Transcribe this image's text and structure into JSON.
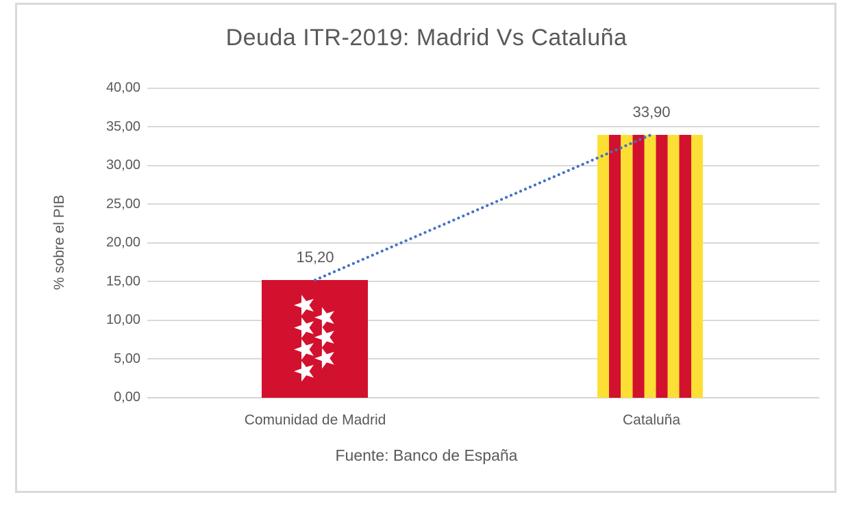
{
  "chart_data": {
    "type": "bar",
    "title": "Deuda ITR-2019: Madrid Vs Cataluña",
    "categories": [
      "Comunidad de Madrid",
      "Cataluña"
    ],
    "values": [
      15.2,
      33.9
    ],
    "value_labels": [
      "15,20",
      "33,90"
    ],
    "ylabel": "% sobre el PIB",
    "footer": "Fuente: Banco de España",
    "ylim": [
      0,
      40
    ],
    "ytick_step": 5,
    "ytick_labels": [
      "40,00",
      "35,00",
      "30,00",
      "25,00",
      "20,00",
      "15,00",
      "10,00",
      "5,00",
      "0,00"
    ],
    "grid": true,
    "legend": "none",
    "bar_styles": [
      {
        "category": "Comunidad de Madrid",
        "style": "madrid-flag",
        "fill": "#D2112E",
        "star_color": "#FFFFFF",
        "star_count": 7
      },
      {
        "category": "Cataluña",
        "style": "senyera-vertical-stripes",
        "yellow": "#FBDF35",
        "red": "#D2112E",
        "red_stripe_count": 4
      }
    ],
    "trendline": {
      "style": "dotted",
      "color": "#4472C4",
      "from_value": 15.2,
      "to_value": 33.9
    }
  },
  "colors": {
    "text": "#595959",
    "gridline": "#D9D9D9",
    "frame_border": "#D9D9D9",
    "background": "#FFFFFF"
  }
}
